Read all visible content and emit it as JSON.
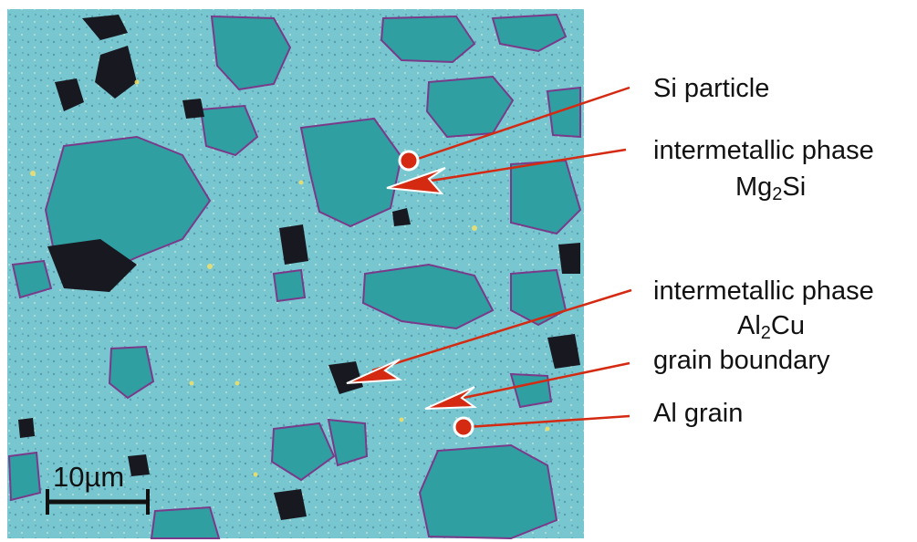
{
  "labels": {
    "si_particle": "Si particle",
    "mg2si_line1": "intermetallic phase",
    "mg2si_formula": {
      "a": "Mg",
      "sub": "2",
      "b": "Si"
    },
    "al2cu_line1": "intermetallic phase",
    "al2cu_formula": {
      "a": "Al",
      "sub": "2",
      "b": "Cu"
    },
    "grain_boundary": "grain boundary",
    "al_grain": "Al grain"
  },
  "scale_bar": {
    "label": "10µm"
  },
  "colors": {
    "matrix": "#78c6d0",
    "particle": "#2fa6a0",
    "dark_phase": "#1a1a22",
    "annotation_red": "#d42a12",
    "marker_fill": "#d42a12",
    "marker_stroke": "#ffffff"
  }
}
